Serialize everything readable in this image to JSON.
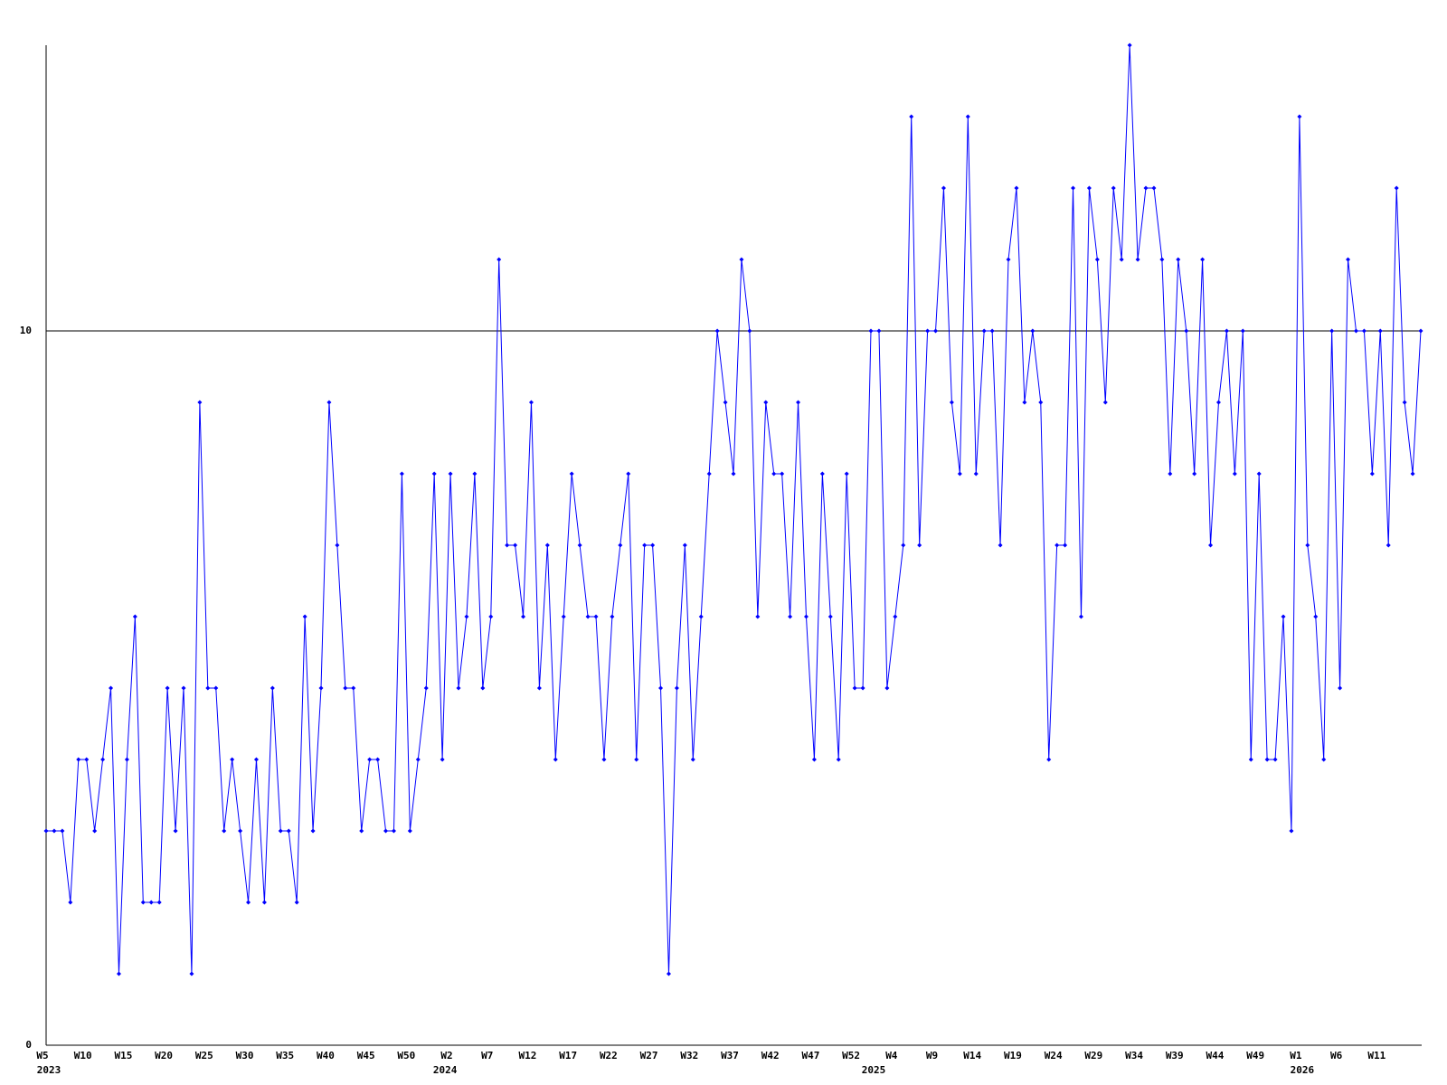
{
  "chart_data": {
    "type": "line",
    "categories": [
      "W5",
      null,
      null,
      null,
      null,
      "W10",
      null,
      null,
      null,
      null,
      "W15",
      null,
      null,
      null,
      null,
      "W20",
      null,
      null,
      null,
      null,
      "W25",
      null,
      null,
      null,
      null,
      "W30",
      null,
      null,
      null,
      null,
      "W35",
      null,
      null,
      null,
      null,
      "W40",
      null,
      null,
      null,
      null,
      "W45",
      null,
      null,
      null,
      null,
      "W50",
      null,
      null,
      null,
      null,
      "W2",
      null,
      null,
      null,
      null,
      "W7",
      null,
      null,
      null,
      null,
      "W12",
      null,
      null,
      null,
      null,
      "W17",
      null,
      null,
      null,
      null,
      "W22",
      null,
      null,
      null,
      null,
      "W27",
      null,
      null,
      null,
      null,
      "W32",
      null,
      null,
      null,
      null,
      "W37",
      null,
      null,
      null,
      null,
      "W42",
      null,
      null,
      null,
      null,
      "W47",
      null,
      null,
      null,
      null,
      "W52",
      null,
      null,
      null,
      null,
      "W4",
      null,
      null,
      null,
      null,
      "W9",
      null,
      null,
      null,
      null,
      "W14",
      null,
      null,
      null,
      null,
      "W19",
      null,
      null,
      null,
      null,
      "W24",
      null,
      null,
      null,
      null,
      "W29",
      null,
      null,
      null,
      null,
      "W34",
      null,
      null,
      null,
      null,
      "W39",
      null,
      null,
      null,
      null,
      "W44",
      null,
      null,
      null,
      null,
      "W49",
      null,
      null,
      null,
      null,
      "W1",
      null,
      null,
      null,
      null,
      "W6",
      null,
      null,
      null,
      null,
      "W11",
      null,
      null,
      null,
      null,
      null
    ],
    "years": [
      "2023",
      null,
      null,
      null,
      null,
      null,
      null,
      null,
      null,
      null,
      null,
      null,
      null,
      null,
      null,
      null,
      null,
      null,
      null,
      null,
      null,
      null,
      null,
      null,
      null,
      null,
      null,
      null,
      null,
      null,
      null,
      null,
      null,
      null,
      null,
      null,
      null,
      null,
      null,
      null,
      null,
      null,
      null,
      null,
      null,
      null,
      null,
      null,
      null,
      "2024",
      null,
      null,
      null,
      null,
      null,
      null,
      null,
      null,
      null,
      null,
      null,
      null,
      null,
      null,
      null,
      null,
      null,
      null,
      null,
      null,
      null,
      null,
      null,
      null,
      null,
      null,
      null,
      null,
      null,
      null,
      null,
      null,
      null,
      null,
      null,
      null,
      null,
      null,
      null,
      null,
      null,
      null,
      null,
      null,
      null,
      null,
      null,
      null,
      null,
      null,
      null,
      null,
      "2025",
      null,
      null,
      null,
      null,
      null,
      null,
      null,
      null,
      null,
      null,
      null,
      null,
      null,
      null,
      null,
      null,
      null,
      null,
      null,
      null,
      null,
      null,
      null,
      null,
      null,
      null,
      null,
      null,
      null,
      null,
      null,
      null,
      null,
      null,
      null,
      null,
      null,
      null,
      null,
      null,
      null,
      null,
      null,
      null,
      null,
      null,
      null,
      null,
      null,
      null,
      null,
      null,
      "2026",
      null,
      null,
      null,
      null,
      null,
      null,
      null,
      null,
      null,
      null,
      null,
      null,
      null,
      null,
      null
    ],
    "values": [
      3,
      3,
      3,
      2,
      4,
      4,
      3,
      4,
      5,
      1,
      4,
      6,
      2,
      2,
      2,
      5,
      3,
      5,
      1,
      9,
      5,
      5,
      3,
      4,
      3,
      2,
      4,
      2,
      5,
      3,
      3,
      2,
      6,
      3,
      5,
      9,
      7,
      5,
      5,
      3,
      4,
      4,
      3,
      3,
      8,
      3,
      4,
      5,
      8,
      4,
      8,
      5,
      6,
      8,
      5,
      6,
      11,
      7,
      7,
      6,
      9,
      5,
      7,
      4,
      6,
      8,
      7,
      6,
      6,
      4,
      6,
      7,
      8,
      4,
      7,
      7,
      5,
      1,
      5,
      7,
      4,
      6,
      8,
      10,
      9,
      8,
      11,
      10,
      6,
      9,
      8,
      8,
      6,
      9,
      6,
      4,
      8,
      6,
      4,
      8,
      5,
      5,
      10,
      10,
      5,
      6,
      7,
      13,
      7,
      10,
      10,
      12,
      9,
      8,
      13,
      8,
      10,
      10,
      7,
      11,
      12,
      9,
      10,
      9,
      4,
      7,
      7,
      12,
      6,
      12,
      11,
      9,
      12,
      11,
      14,
      11,
      12,
      12,
      11,
      8,
      11,
      10,
      8,
      11,
      7,
      9,
      10,
      8,
      10,
      4,
      8,
      4,
      4,
      6,
      3,
      13,
      7,
      6,
      4,
      10,
      5,
      11,
      10,
      10,
      8,
      10,
      7,
      12,
      9,
      8,
      10
    ],
    "color": "#0000ff",
    "ylim": [
      0,
      14
    ],
    "yticks": [
      0,
      10
    ],
    "grid": true
  }
}
